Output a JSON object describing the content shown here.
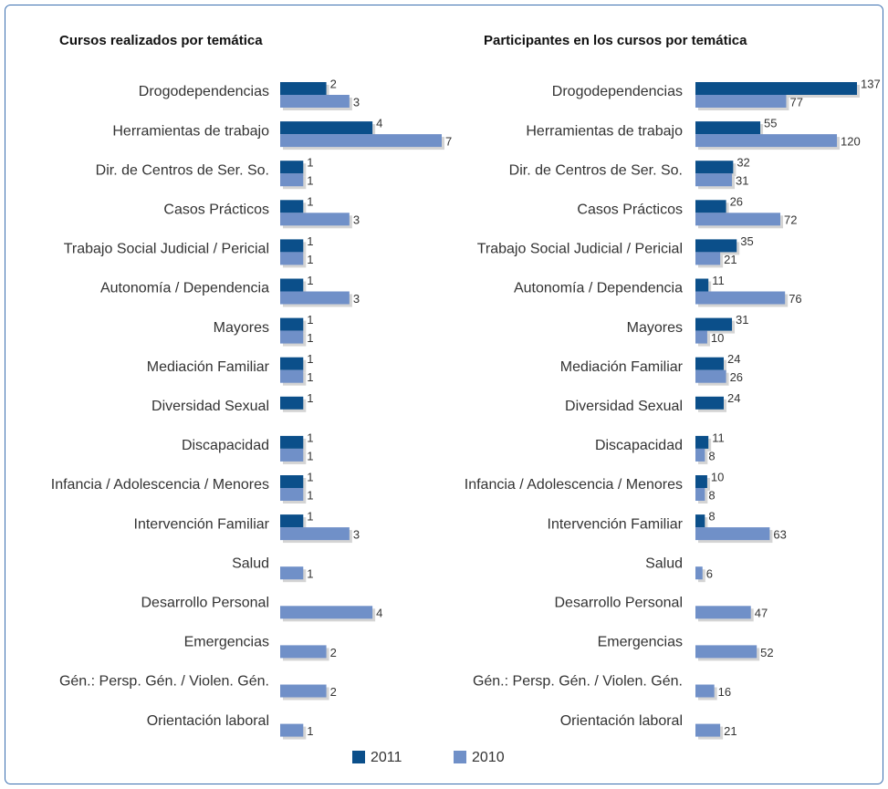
{
  "chart_data": [
    {
      "type": "bar",
      "orientation": "horizontal",
      "title": "Cursos realizados por temática",
      "categories": [
        "Drogodependencias",
        "Herramientas de trabajo",
        "Dir. de Centros de Ser. So.",
        "Casos Prácticos",
        "Trabajo Social Judicial / Pericial",
        "Autonomía / Dependencia",
        "Mayores",
        "Mediación Familiar",
        "Diversidad Sexual",
        "Discapacidad",
        "Infancia / Adolescencia / Menores",
        "Intervención Familiar",
        "Salud",
        "Desarrollo Personal",
        "Emergencias",
        "Gén.: Persp. Gén. / Violen. Gén.",
        "Orientación laboral"
      ],
      "series": [
        {
          "name": "2011",
          "color": "#0b4f8a",
          "values": [
            2,
            4,
            1,
            1,
            1,
            1,
            1,
            1,
            1,
            1,
            1,
            1,
            null,
            null,
            null,
            null,
            null
          ]
        },
        {
          "name": "2010",
          "color": "#7090c8",
          "values": [
            3,
            7,
            1,
            3,
            1,
            3,
            1,
            1,
            null,
            1,
            1,
            3,
            1,
            4,
            2,
            2,
            1
          ]
        }
      ],
      "legend": "bottom"
    },
    {
      "type": "bar",
      "orientation": "horizontal",
      "title": "Participantes en los cursos por temática",
      "categories": [
        "Drogodependencias",
        "Herramientas de trabajo",
        "Dir. de Centros de Ser. So.",
        "Casos Prácticos",
        "Trabajo Social Judicial / Pericial",
        "Autonomía / Dependencia",
        "Mayores",
        "Mediación Familiar",
        "Diversidad Sexual",
        "Discapacidad",
        "Infancia / Adolescencia / Menores",
        "Intervención Familiar",
        "Salud",
        "Desarrollo Personal",
        "Emergencias",
        "Gén.: Persp. Gén. / Violen. Gén.",
        "Orientación laboral"
      ],
      "series": [
        {
          "name": "2011",
          "color": "#0b4f8a",
          "values": [
            137,
            55,
            32,
            26,
            35,
            11,
            31,
            24,
            24,
            11,
            10,
            8,
            null,
            null,
            null,
            null,
            null
          ]
        },
        {
          "name": "2010",
          "color": "#7090c8",
          "values": [
            77,
            120,
            31,
            72,
            21,
            76,
            10,
            26,
            null,
            8,
            8,
            63,
            6,
            47,
            52,
            16,
            21
          ]
        }
      ],
      "legend": "bottom"
    }
  ]
}
